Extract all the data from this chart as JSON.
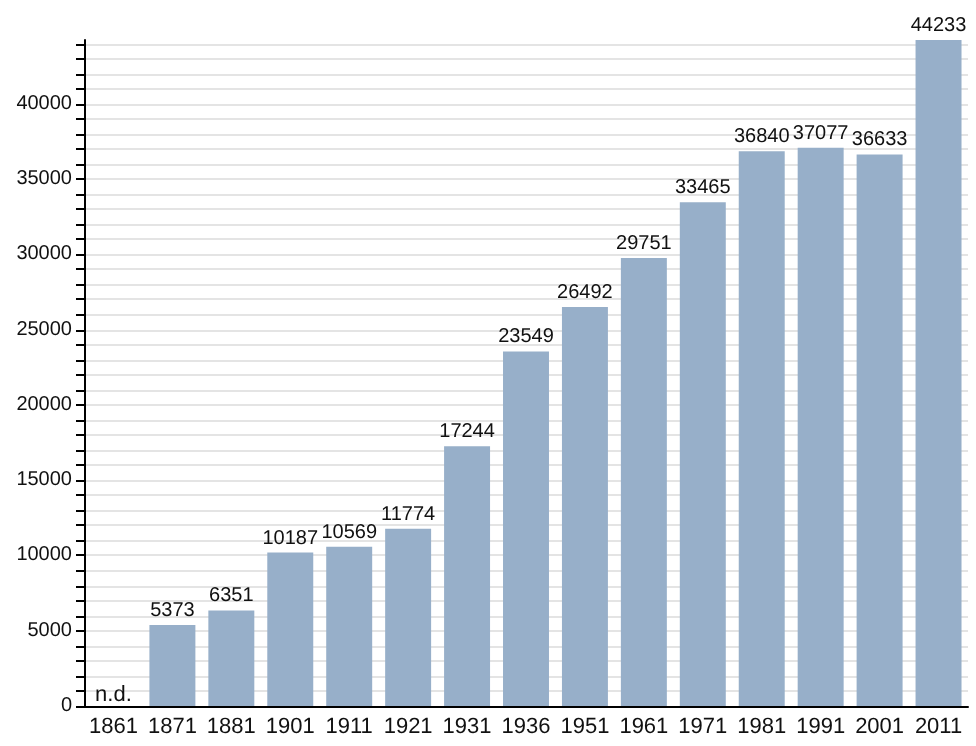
{
  "chart_data": {
    "type": "bar",
    "categories": [
      "1861",
      "1871",
      "1881",
      "1901",
      "1911",
      "1921",
      "1931",
      "1936",
      "1951",
      "1961",
      "1971",
      "1981",
      "1991",
      "2001",
      "2011"
    ],
    "values": [
      null,
      5373,
      6351,
      10187,
      10569,
      11774,
      17244,
      23549,
      26492,
      29751,
      33465,
      36840,
      37077,
      36633,
      44233
    ],
    "value_labels": [
      "n.d.",
      "5373",
      "6351",
      "10187",
      "10569",
      "11774",
      "17244",
      "23549",
      "26492",
      "29751",
      "33465",
      "36840",
      "37077",
      "36633",
      "44233"
    ],
    "color": "#97afc9",
    "ylim": [
      0,
      44233
    ],
    "yticks": [
      0,
      {
        "value": 1000,
        "label": null
      },
      {
        "value": 2000,
        "label": null
      },
      {
        "value": 3000,
        "label": null
      },
      {
        "value": 4000,
        "label": null
      },
      5000,
      {
        "value": 6000,
        "label": null
      },
      {
        "value": 7000,
        "label": null
      },
      {
        "value": 8000,
        "label": null
      },
      {
        "value": 9000,
        "label": null
      },
      10000,
      {
        "value": 11000,
        "label": null
      },
      {
        "value": 12000,
        "label": null
      },
      {
        "value": 13000,
        "label": null
      },
      {
        "value": 14000,
        "label": null
      },
      15000,
      {
        "value": 16000,
        "label": null
      },
      {
        "value": 17000,
        "label": null
      },
      {
        "value": 18000,
        "label": null
      },
      {
        "value": 19000,
        "label": null
      },
      20000,
      {
        "value": 21000,
        "label": null
      },
      {
        "value": 22000,
        "label": null
      },
      {
        "value": 23000,
        "label": null
      },
      {
        "value": 24000,
        "label": null
      },
      25000,
      {
        "value": 26000,
        "label": null
      },
      {
        "value": 27000,
        "label": null
      },
      {
        "value": 28000,
        "label": null
      },
      {
        "value": 29000,
        "label": null
      },
      30000,
      {
        "value": 31000,
        "label": null
      },
      {
        "value": 32000,
        "label": null
      },
      {
        "value": 33000,
        "label": null
      },
      {
        "value": 34000,
        "label": null
      },
      35000,
      {
        "value": 36000,
        "label": null
      },
      {
        "value": 37000,
        "label": null
      },
      {
        "value": 38000,
        "label": null
      },
      {
        "value": 39000,
        "label": null
      },
      40000,
      {
        "value": 41000,
        "label": null
      },
      {
        "value": 42000,
        "label": null
      },
      {
        "value": 43000,
        "label": null
      },
      {
        "value": 44000,
        "label": null
      }
    ],
    "grid": "y"
  }
}
